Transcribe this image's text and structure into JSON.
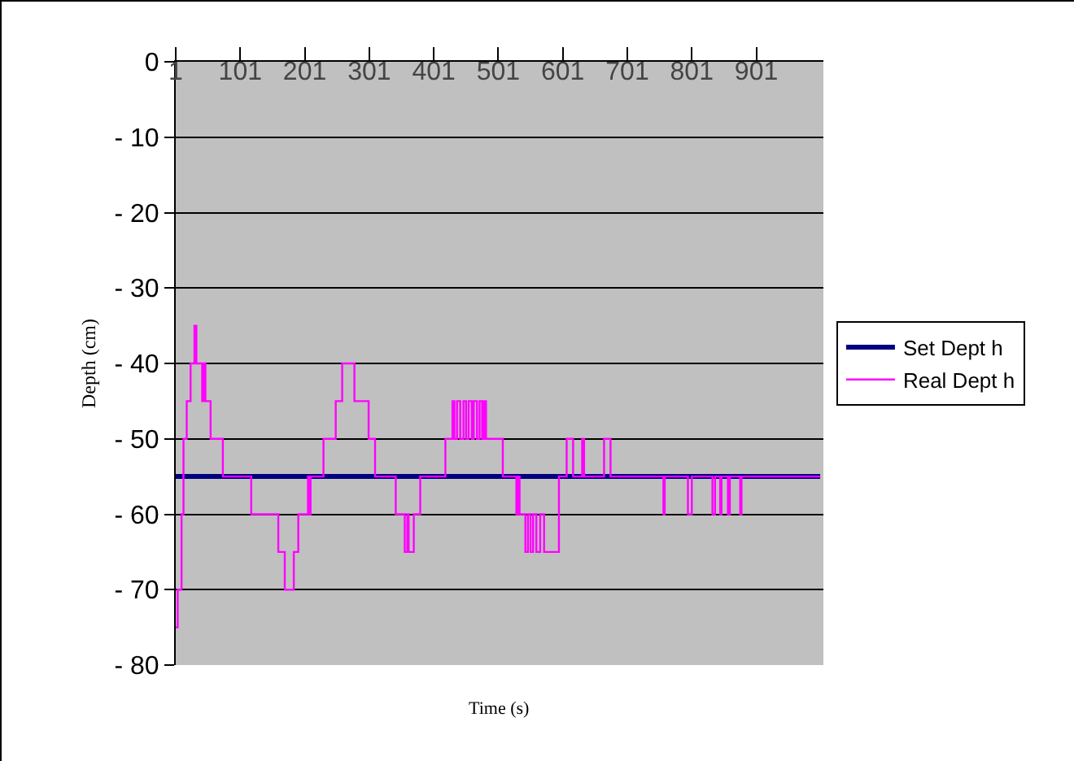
{
  "chart_data": {
    "type": "line",
    "xlabel": "Time (s)",
    "ylabel": "Depth (cm)",
    "xlim": [
      1,
      1005
    ],
    "xticks": [
      1,
      101,
      201,
      301,
      401,
      501,
      601,
      701,
      801,
      901
    ],
    "ylim": [
      -80,
      0
    ],
    "yticks": [
      0,
      {
        "value": -10,
        "label": "- 10"
      },
      {
        "value": -20,
        "label": "- 20"
      },
      {
        "value": -30,
        "label": "- 30"
      },
      {
        "value": -40,
        "label": "- 40"
      },
      {
        "value": -50,
        "label": "- 50"
      },
      {
        "value": -60,
        "label": "- 60"
      },
      {
        "value": -70,
        "label": "- 70"
      },
      {
        "value": -80,
        "label": "- 80"
      }
    ],
    "grid": "y",
    "legend": "right",
    "marker": "none",
    "line_style": "solid",
    "series": [
      {
        "name": "Set Dept h",
        "color": "#000080",
        "x": [
          1,
          1000
        ],
        "values": [
          -55,
          -55
        ]
      },
      {
        "name": "Real Dept h",
        "color": "#ff00ff",
        "type": "step",
        "x": [
          1,
          4,
          10,
          13,
          18,
          24,
          30,
          33,
          42,
          45,
          47,
          55,
          74,
          118,
          160,
          170,
          184,
          191,
          206,
          208,
          210,
          230,
          249,
          259,
          278,
          300,
          310,
          342,
          356,
          360,
          362,
          370,
          380,
          419,
          430,
          433,
          437,
          442,
          447,
          451,
          455,
          460,
          463,
          468,
          472,
          476,
          479,
          482,
          508,
          529,
          532,
          534,
          543,
          547,
          551,
          555,
          560,
          566,
          572,
          595,
          607,
          617,
          631,
          634,
          665,
          675,
          757,
          759,
          795,
          801,
          833,
          837,
          845,
          847,
          857,
          860,
          876,
          878,
          1000
        ],
        "values": [
          -75,
          -70,
          -60,
          -50,
          -45,
          -40,
          -35,
          -40,
          -45,
          -40,
          -45,
          -50,
          -55,
          -60,
          -65,
          -70,
          -65,
          -60,
          -55,
          -60,
          -55,
          -50,
          -45,
          -40,
          -45,
          -50,
          -55,
          -60,
          -65,
          -60,
          -65,
          -60,
          -55,
          -50,
          -45,
          -50,
          -45,
          -50,
          -45,
          -50,
          -45,
          -50,
          -45,
          -50,
          -45,
          -50,
          -45,
          -50,
          -55,
          -60,
          -55,
          -60,
          -65,
          -60,
          -65,
          -60,
          -65,
          -60,
          -65,
          -55,
          -50,
          -55,
          -50,
          -55,
          -50,
          -55,
          -60,
          -55,
          -60,
          -55,
          -60,
          -55,
          -60,
          -55,
          -60,
          -55,
          -60,
          -55,
          -55
        ]
      }
    ]
  }
}
